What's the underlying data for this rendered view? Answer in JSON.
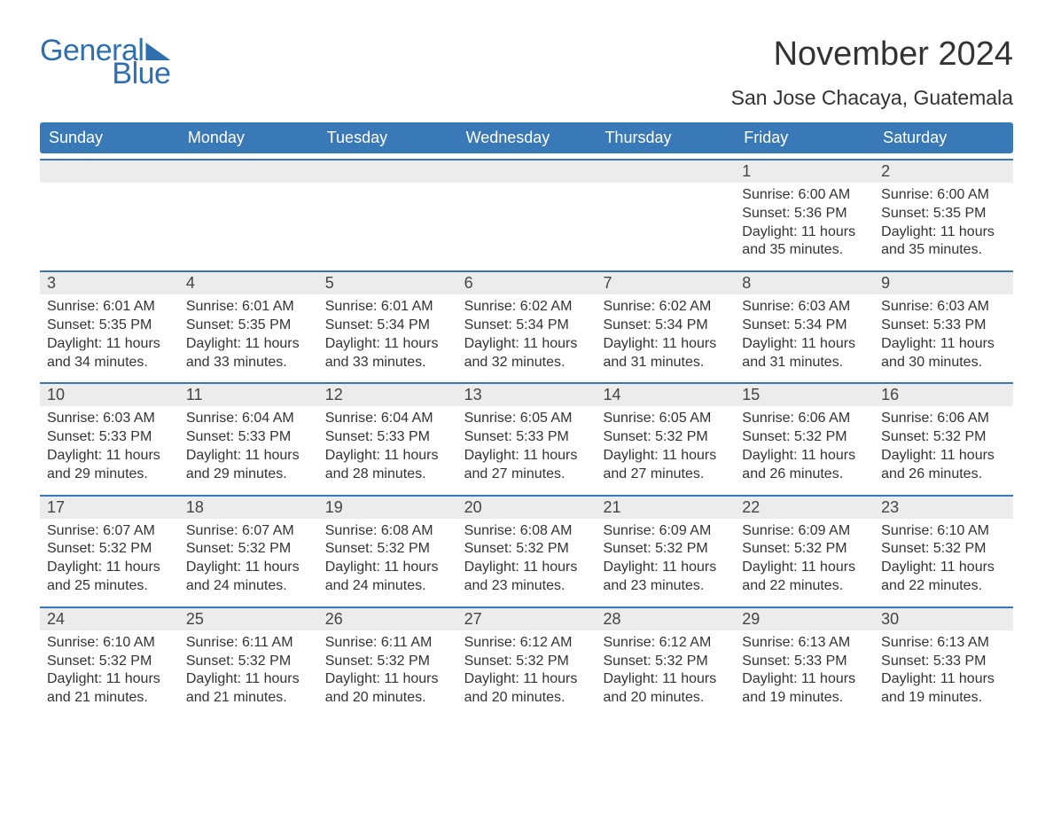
{
  "brand": {
    "general": "General",
    "blue": "Blue",
    "brand_color": "#2f6fb0"
  },
  "title": "November 2024",
  "location": "San Jose Chacaya, Guatemala",
  "colors": {
    "header_bg": "#3a79b7",
    "header_text": "#ffffff",
    "band_bg": "#ececec",
    "band_border": "#3a79b7",
    "body_text": "#333333",
    "page_bg": "#ffffff"
  },
  "typography": {
    "title_fontsize": 38,
    "location_fontsize": 23,
    "dayhead_fontsize": 18,
    "daynum_fontsize": 18,
    "body_fontsize": 16,
    "font_family": "Arial"
  },
  "day_headers": [
    "Sunday",
    "Monday",
    "Tuesday",
    "Wednesday",
    "Thursday",
    "Friday",
    "Saturday"
  ],
  "weeks": [
    [
      {
        "day": "",
        "sunrise": "",
        "sunset": "",
        "daylight1": "",
        "daylight2": ""
      },
      {
        "day": "",
        "sunrise": "",
        "sunset": "",
        "daylight1": "",
        "daylight2": ""
      },
      {
        "day": "",
        "sunrise": "",
        "sunset": "",
        "daylight1": "",
        "daylight2": ""
      },
      {
        "day": "",
        "sunrise": "",
        "sunset": "",
        "daylight1": "",
        "daylight2": ""
      },
      {
        "day": "",
        "sunrise": "",
        "sunset": "",
        "daylight1": "",
        "daylight2": ""
      },
      {
        "day": "1",
        "sunrise": "Sunrise: 6:00 AM",
        "sunset": "Sunset: 5:36 PM",
        "daylight1": "Daylight: 11 hours",
        "daylight2": "and 35 minutes."
      },
      {
        "day": "2",
        "sunrise": "Sunrise: 6:00 AM",
        "sunset": "Sunset: 5:35 PM",
        "daylight1": "Daylight: 11 hours",
        "daylight2": "and 35 minutes."
      }
    ],
    [
      {
        "day": "3",
        "sunrise": "Sunrise: 6:01 AM",
        "sunset": "Sunset: 5:35 PM",
        "daylight1": "Daylight: 11 hours",
        "daylight2": "and 34 minutes."
      },
      {
        "day": "4",
        "sunrise": "Sunrise: 6:01 AM",
        "sunset": "Sunset: 5:35 PM",
        "daylight1": "Daylight: 11 hours",
        "daylight2": "and 33 minutes."
      },
      {
        "day": "5",
        "sunrise": "Sunrise: 6:01 AM",
        "sunset": "Sunset: 5:34 PM",
        "daylight1": "Daylight: 11 hours",
        "daylight2": "and 33 minutes."
      },
      {
        "day": "6",
        "sunrise": "Sunrise: 6:02 AM",
        "sunset": "Sunset: 5:34 PM",
        "daylight1": "Daylight: 11 hours",
        "daylight2": "and 32 minutes."
      },
      {
        "day": "7",
        "sunrise": "Sunrise: 6:02 AM",
        "sunset": "Sunset: 5:34 PM",
        "daylight1": "Daylight: 11 hours",
        "daylight2": "and 31 minutes."
      },
      {
        "day": "8",
        "sunrise": "Sunrise: 6:03 AM",
        "sunset": "Sunset: 5:34 PM",
        "daylight1": "Daylight: 11 hours",
        "daylight2": "and 31 minutes."
      },
      {
        "day": "9",
        "sunrise": "Sunrise: 6:03 AM",
        "sunset": "Sunset: 5:33 PM",
        "daylight1": "Daylight: 11 hours",
        "daylight2": "and 30 minutes."
      }
    ],
    [
      {
        "day": "10",
        "sunrise": "Sunrise: 6:03 AM",
        "sunset": "Sunset: 5:33 PM",
        "daylight1": "Daylight: 11 hours",
        "daylight2": "and 29 minutes."
      },
      {
        "day": "11",
        "sunrise": "Sunrise: 6:04 AM",
        "sunset": "Sunset: 5:33 PM",
        "daylight1": "Daylight: 11 hours",
        "daylight2": "and 29 minutes."
      },
      {
        "day": "12",
        "sunrise": "Sunrise: 6:04 AM",
        "sunset": "Sunset: 5:33 PM",
        "daylight1": "Daylight: 11 hours",
        "daylight2": "and 28 minutes."
      },
      {
        "day": "13",
        "sunrise": "Sunrise: 6:05 AM",
        "sunset": "Sunset: 5:33 PM",
        "daylight1": "Daylight: 11 hours",
        "daylight2": "and 27 minutes."
      },
      {
        "day": "14",
        "sunrise": "Sunrise: 6:05 AM",
        "sunset": "Sunset: 5:32 PM",
        "daylight1": "Daylight: 11 hours",
        "daylight2": "and 27 minutes."
      },
      {
        "day": "15",
        "sunrise": "Sunrise: 6:06 AM",
        "sunset": "Sunset: 5:32 PM",
        "daylight1": "Daylight: 11 hours",
        "daylight2": "and 26 minutes."
      },
      {
        "day": "16",
        "sunrise": "Sunrise: 6:06 AM",
        "sunset": "Sunset: 5:32 PM",
        "daylight1": "Daylight: 11 hours",
        "daylight2": "and 26 minutes."
      }
    ],
    [
      {
        "day": "17",
        "sunrise": "Sunrise: 6:07 AM",
        "sunset": "Sunset: 5:32 PM",
        "daylight1": "Daylight: 11 hours",
        "daylight2": "and 25 minutes."
      },
      {
        "day": "18",
        "sunrise": "Sunrise: 6:07 AM",
        "sunset": "Sunset: 5:32 PM",
        "daylight1": "Daylight: 11 hours",
        "daylight2": "and 24 minutes."
      },
      {
        "day": "19",
        "sunrise": "Sunrise: 6:08 AM",
        "sunset": "Sunset: 5:32 PM",
        "daylight1": "Daylight: 11 hours",
        "daylight2": "and 24 minutes."
      },
      {
        "day": "20",
        "sunrise": "Sunrise: 6:08 AM",
        "sunset": "Sunset: 5:32 PM",
        "daylight1": "Daylight: 11 hours",
        "daylight2": "and 23 minutes."
      },
      {
        "day": "21",
        "sunrise": "Sunrise: 6:09 AM",
        "sunset": "Sunset: 5:32 PM",
        "daylight1": "Daylight: 11 hours",
        "daylight2": "and 23 minutes."
      },
      {
        "day": "22",
        "sunrise": "Sunrise: 6:09 AM",
        "sunset": "Sunset: 5:32 PM",
        "daylight1": "Daylight: 11 hours",
        "daylight2": "and 22 minutes."
      },
      {
        "day": "23",
        "sunrise": "Sunrise: 6:10 AM",
        "sunset": "Sunset: 5:32 PM",
        "daylight1": "Daylight: 11 hours",
        "daylight2": "and 22 minutes."
      }
    ],
    [
      {
        "day": "24",
        "sunrise": "Sunrise: 6:10 AM",
        "sunset": "Sunset: 5:32 PM",
        "daylight1": "Daylight: 11 hours",
        "daylight2": "and 21 minutes."
      },
      {
        "day": "25",
        "sunrise": "Sunrise: 6:11 AM",
        "sunset": "Sunset: 5:32 PM",
        "daylight1": "Daylight: 11 hours",
        "daylight2": "and 21 minutes."
      },
      {
        "day": "26",
        "sunrise": "Sunrise: 6:11 AM",
        "sunset": "Sunset: 5:32 PM",
        "daylight1": "Daylight: 11 hours",
        "daylight2": "and 20 minutes."
      },
      {
        "day": "27",
        "sunrise": "Sunrise: 6:12 AM",
        "sunset": "Sunset: 5:32 PM",
        "daylight1": "Daylight: 11 hours",
        "daylight2": "and 20 minutes."
      },
      {
        "day": "28",
        "sunrise": "Sunrise: 6:12 AM",
        "sunset": "Sunset: 5:32 PM",
        "daylight1": "Daylight: 11 hours",
        "daylight2": "and 20 minutes."
      },
      {
        "day": "29",
        "sunrise": "Sunrise: 6:13 AM",
        "sunset": "Sunset: 5:33 PM",
        "daylight1": "Daylight: 11 hours",
        "daylight2": "and 19 minutes."
      },
      {
        "day": "30",
        "sunrise": "Sunrise: 6:13 AM",
        "sunset": "Sunset: 5:33 PM",
        "daylight1": "Daylight: 11 hours",
        "daylight2": "and 19 minutes."
      }
    ]
  ]
}
